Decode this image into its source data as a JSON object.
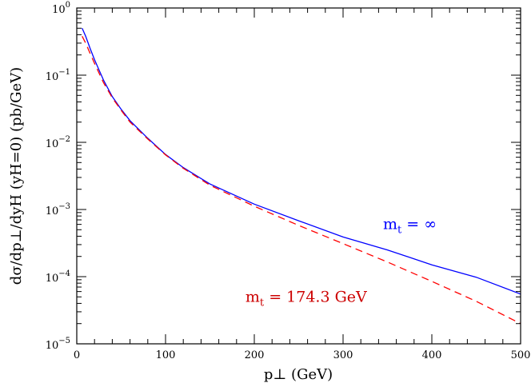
{
  "chart_data": {
    "type": "line",
    "title": "",
    "xlabel": "p⊥ (GeV)",
    "ylabel": "dσ/dp⊥/dyH (yH=0) (pb/GeV)",
    "xlim": [
      0,
      500
    ],
    "ylim": [
      1e-05,
      1
    ],
    "yscale": "log",
    "grid": false,
    "x_ticks": [
      0,
      100,
      200,
      300,
      400,
      500
    ],
    "x_tick_labels": [
      "0",
      "100",
      "200",
      "300",
      "400",
      "500"
    ],
    "y_ticks": [
      1e-05,
      0.0001,
      0.001,
      0.01,
      0.1,
      1
    ],
    "y_tick_labels": [
      {
        "base": "10",
        "exp": "−5"
      },
      {
        "base": "10",
        "exp": "−4"
      },
      {
        "base": "10",
        "exp": "−3"
      },
      {
        "base": "10",
        "exp": "−2"
      },
      {
        "base": "10",
        "exp": "−1"
      },
      {
        "base": "10",
        "exp": "0"
      }
    ],
    "series": [
      {
        "name": "m_t = ∞",
        "color": "#0000ff",
        "dash": "solid",
        "x": [
          6,
          10,
          15,
          20,
          30,
          40,
          50,
          60,
          80,
          100,
          120,
          150,
          200,
          250,
          300,
          350,
          400,
          450,
          500
        ],
        "y": [
          0.5,
          0.38,
          0.25,
          0.17,
          0.085,
          0.048,
          0.031,
          0.021,
          0.0115,
          0.0066,
          0.0042,
          0.0024,
          0.0012,
          0.00068,
          0.00039,
          0.00025,
          0.00015,
          9.8e-05,
          5.5e-05
        ]
      },
      {
        "name": "m_t = 174.3 GeV",
        "color": "#ff0000",
        "dash": "dashed",
        "x": [
          6,
          10,
          15,
          20,
          30,
          40,
          50,
          60,
          80,
          100,
          120,
          150,
          200,
          250,
          300,
          350,
          400,
          450,
          500
        ],
        "y": [
          0.38,
          0.3,
          0.21,
          0.15,
          0.078,
          0.046,
          0.03,
          0.02,
          0.0112,
          0.0065,
          0.0041,
          0.0023,
          0.00112,
          0.00058,
          0.00031,
          0.000165,
          8.5e-05,
          4.3e-05,
          2e-05
        ]
      }
    ],
    "annotations": [
      {
        "main": "m",
        "sub": "t",
        "rest": " = ∞",
        "color": "#0000ff",
        "x": 345,
        "y": 0.00051
      },
      {
        "main": "m",
        "sub": "t",
        "rest": " = 174.3 GeV",
        "color": "#cc0000",
        "x": 190,
        "y": 4.2e-05
      }
    ]
  }
}
